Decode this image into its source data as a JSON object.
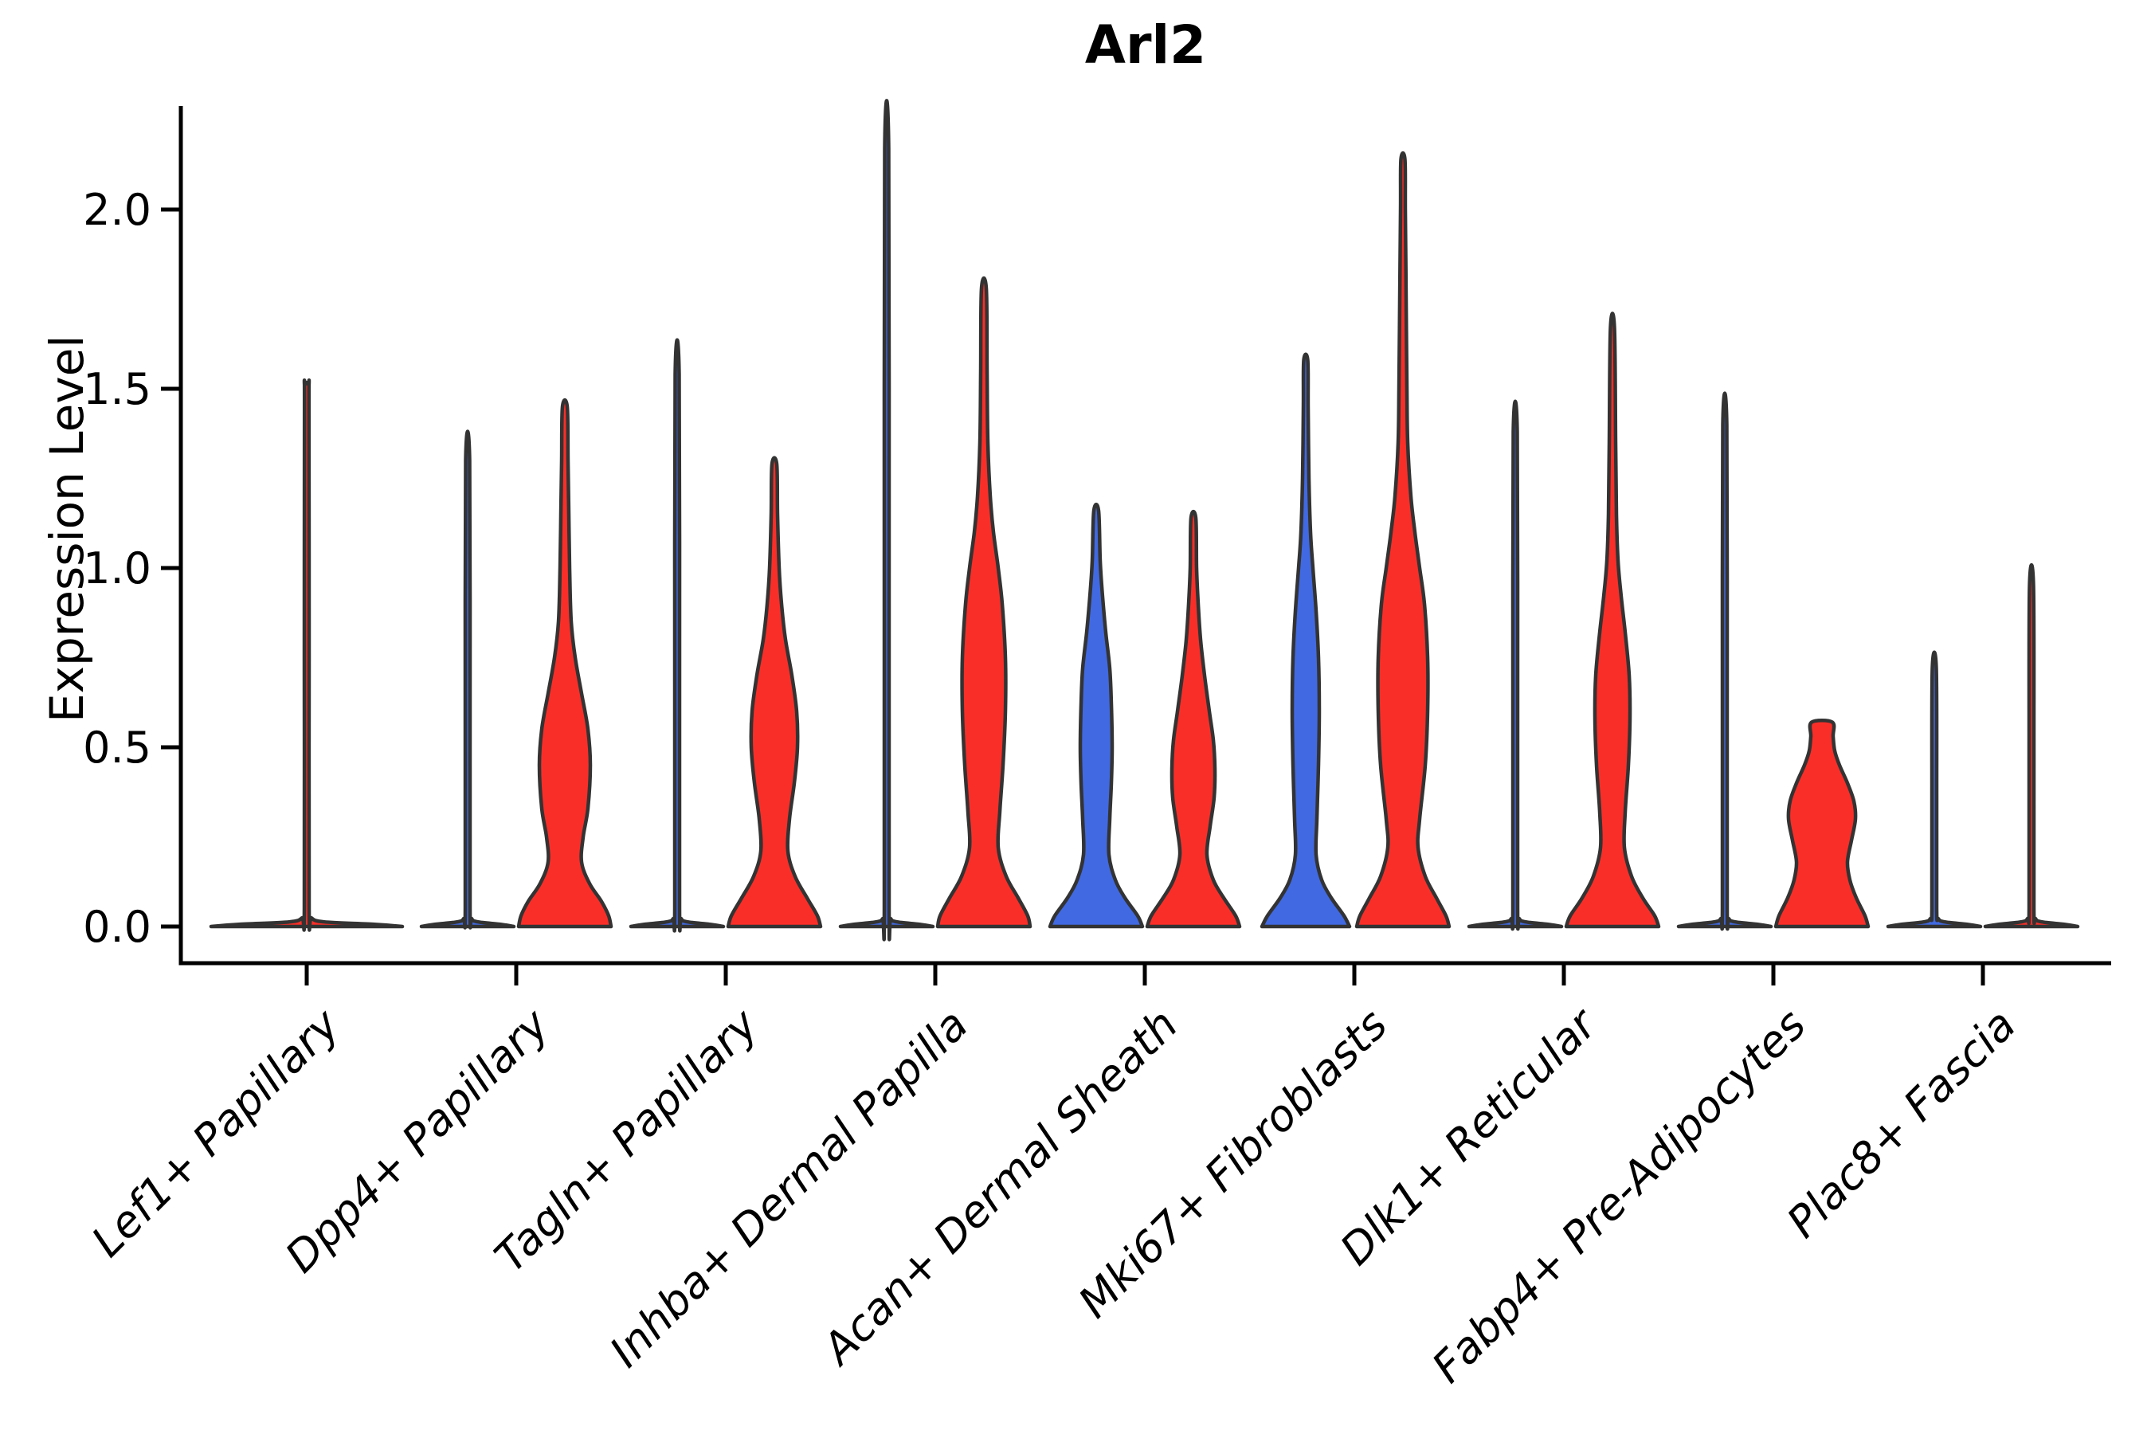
{
  "title": "Arl2",
  "y_axis": {
    "label": "Expression Level",
    "tick_labels": [
      "0.0",
      "0.5",
      "1.0",
      "1.5",
      "2.0"
    ],
    "tick_values": [
      0.0,
      0.5,
      1.0,
      1.5,
      2.0
    ]
  },
  "categories": [
    "Lef1+ Papillary",
    "Dpp4+ Papillary",
    "Tagln+ Papillary",
    "Inhba+ Dermal Papilla",
    "Acan+ Dermal Sheath",
    "Mki67+ Fibroblasts",
    "Dlk1+ Reticular",
    "Fabp4+ Pre-Adipocytes",
    "Plac8+ Fascia"
  ],
  "colors": {
    "red": "#FA2E28",
    "blue": "#4169E1",
    "stroke": "#333333",
    "axis": "#000000"
  },
  "chart_data": {
    "type": "violin",
    "title": "Arl2",
    "xlabel": "",
    "ylabel": "Expression Level",
    "ylim": [
      -0.1,
      2.29
    ],
    "yticks": [
      0.0,
      0.5,
      1.0,
      1.5,
      2.0
    ],
    "grid": false,
    "legend": "none",
    "note": "paired violins per cell type; profile = [expression_value, half_width_px]",
    "groups": [
      {
        "category": "Lef1+ Papillary",
        "violins": [
          {
            "side": "center",
            "color": "red",
            "max_expression": 1.51,
            "profile": [
              [
                0,
                120
              ],
              [
                0.006,
                85
              ],
              [
                0.013,
                22
              ],
              [
                0.024,
                6
              ],
              [
                0.05,
                3
              ],
              [
                0.75,
                3
              ],
              [
                1.45,
                2.8
              ],
              [
                1.51,
                2.5
              ]
            ]
          }
        ]
      },
      {
        "category": "Dpp4+ Papillary",
        "violins": [
          {
            "side": "left",
            "color": "blue",
            "max_expression": 1.3,
            "profile": [
              [
                0,
                58
              ],
              [
                0.006,
                42
              ],
              [
                0.013,
                13
              ],
              [
                0.022,
                5
              ],
              [
                0.05,
                3
              ],
              [
                0.65,
                3
              ],
              [
                1.3,
                2.5
              ]
            ]
          },
          {
            "side": "right",
            "color": "red",
            "max_expression": 1.45,
            "profile": [
              [
                0,
                58
              ],
              [
                0.03,
                55
              ],
              [
                0.07,
                46
              ],
              [
                0.12,
                31
              ],
              [
                0.18,
                21
              ],
              [
                0.25,
                23
              ],
              [
                0.33,
                29
              ],
              [
                0.45,
                32
              ],
              [
                0.55,
                29
              ],
              [
                0.65,
                21
              ],
              [
                0.75,
                13
              ],
              [
                0.85,
                8
              ],
              [
                1.0,
                6
              ],
              [
                1.15,
                5
              ],
              [
                1.3,
                4
              ],
              [
                1.45,
                3
              ]
            ]
          }
        ]
      },
      {
        "category": "Tagln+ Papillary",
        "violins": [
          {
            "side": "left",
            "color": "blue",
            "max_expression": 1.54,
            "profile": [
              [
                0,
                58
              ],
              [
                0.006,
                42
              ],
              [
                0.013,
                13
              ],
              [
                0.022,
                5
              ],
              [
                0.05,
                3
              ],
              [
                0.77,
                3
              ],
              [
                1.54,
                2.5
              ]
            ]
          },
          {
            "side": "right",
            "color": "red",
            "max_expression": 1.29,
            "profile": [
              [
                0,
                58
              ],
              [
                0.03,
                54
              ],
              [
                0.08,
                41
              ],
              [
                0.14,
                26
              ],
              [
                0.21,
                17
              ],
              [
                0.3,
                19
              ],
              [
                0.4,
                25
              ],
              [
                0.5,
                29
              ],
              [
                0.6,
                28
              ],
              [
                0.7,
                22
              ],
              [
                0.8,
                14
              ],
              [
                0.9,
                9
              ],
              [
                1.0,
                6
              ],
              [
                1.15,
                4
              ],
              [
                1.29,
                3
              ]
            ]
          }
        ]
      },
      {
        "category": "Inhba+ Dermal Papilla",
        "violins": [
          {
            "side": "left",
            "color": "blue",
            "max_expression": 2.17,
            "profile": [
              [
                0,
                58
              ],
              [
                0.006,
                42
              ],
              [
                0.013,
                13
              ],
              [
                0.022,
                5
              ],
              [
                0.05,
                3
              ],
              [
                1.1,
                3
              ],
              [
                2.17,
                2.5
              ]
            ]
          },
          {
            "side": "right",
            "color": "red",
            "max_expression": 1.78,
            "profile": [
              [
                0,
                58
              ],
              [
                0.03,
                55
              ],
              [
                0.08,
                43
              ],
              [
                0.14,
                28
              ],
              [
                0.22,
                18
              ],
              [
                0.32,
                20
              ],
              [
                0.45,
                24
              ],
              [
                0.6,
                27
              ],
              [
                0.75,
                27
              ],
              [
                0.9,
                23
              ],
              [
                1.0,
                18
              ],
              [
                1.1,
                12
              ],
              [
                1.2,
                8
              ],
              [
                1.35,
                5
              ],
              [
                1.55,
                4
              ],
              [
                1.78,
                3
              ]
            ]
          }
        ]
      },
      {
        "category": "Acan+ Dermal Sheath",
        "violins": [
          {
            "side": "left",
            "color": "blue",
            "max_expression": 1.16,
            "profile": [
              [
                0,
                58
              ],
              [
                0.03,
                52
              ],
              [
                0.08,
                36
              ],
              [
                0.13,
                24
              ],
              [
                0.2,
                16
              ],
              [
                0.3,
                17
              ],
              [
                0.4,
                19
              ],
              [
                0.5,
                20
              ],
              [
                0.62,
                19
              ],
              [
                0.72,
                17
              ],
              [
                0.82,
                12
              ],
              [
                0.92,
                8
              ],
              [
                1.02,
                5
              ],
              [
                1.16,
                3
              ]
            ]
          },
          {
            "side": "right",
            "color": "red",
            "max_expression": 1.14,
            "profile": [
              [
                0,
                58
              ],
              [
                0.03,
                53
              ],
              [
                0.08,
                38
              ],
              [
                0.13,
                25
              ],
              [
                0.2,
                17
              ],
              [
                0.28,
                21
              ],
              [
                0.36,
                26
              ],
              [
                0.44,
                27
              ],
              [
                0.52,
                25
              ],
              [
                0.6,
                20
              ],
              [
                0.7,
                14
              ],
              [
                0.8,
                9
              ],
              [
                0.9,
                6
              ],
              [
                1.0,
                4
              ],
              [
                1.14,
                3
              ]
            ]
          }
        ]
      },
      {
        "category": "Mki67+ Fibroblasts",
        "violins": [
          {
            "side": "left",
            "color": "blue",
            "max_expression": 1.58,
            "profile": [
              [
                0,
                55
              ],
              [
                0.03,
                48
              ],
              [
                0.08,
                32
              ],
              [
                0.13,
                20
              ],
              [
                0.2,
                13
              ],
              [
                0.3,
                14
              ],
              [
                0.45,
                16
              ],
              [
                0.6,
                17
              ],
              [
                0.75,
                16
              ],
              [
                0.88,
                13
              ],
              [
                1.0,
                9
              ],
              [
                1.1,
                6
              ],
              [
                1.25,
                4
              ],
              [
                1.45,
                3
              ],
              [
                1.58,
                2.5
              ]
            ]
          },
          {
            "side": "right",
            "color": "red",
            "max_expression": 2.14,
            "profile": [
              [
                0,
                58
              ],
              [
                0.03,
                54
              ],
              [
                0.08,
                42
              ],
              [
                0.14,
                28
              ],
              [
                0.22,
                19
              ],
              [
                0.3,
                21
              ],
              [
                0.45,
                28
              ],
              [
                0.6,
                31
              ],
              [
                0.75,
                31
              ],
              [
                0.9,
                27
              ],
              [
                1.0,
                21
              ],
              [
                1.1,
                15
              ],
              [
                1.2,
                10
              ],
              [
                1.35,
                6
              ],
              [
                1.5,
                5
              ],
              [
                1.75,
                4
              ],
              [
                2.0,
                3
              ],
              [
                2.14,
                2.5
              ]
            ]
          }
        ]
      },
      {
        "category": "Dlk1+ Reticular",
        "violins": [
          {
            "side": "left",
            "color": "blue",
            "max_expression": 1.38,
            "profile": [
              [
                0,
                58
              ],
              [
                0.006,
                42
              ],
              [
                0.013,
                13
              ],
              [
                0.022,
                5
              ],
              [
                0.05,
                3
              ],
              [
                0.7,
                3
              ],
              [
                1.38,
                2.5
              ]
            ]
          },
          {
            "side": "right",
            "color": "red",
            "max_expression": 1.67,
            "profile": [
              [
                0,
                58
              ],
              [
                0.03,
                53
              ],
              [
                0.08,
                38
              ],
              [
                0.14,
                24
              ],
              [
                0.22,
                15
              ],
              [
                0.32,
                16
              ],
              [
                0.45,
                20
              ],
              [
                0.58,
                22
              ],
              [
                0.7,
                21
              ],
              [
                0.82,
                16
              ],
              [
                0.92,
                11
              ],
              [
                1.02,
                7
              ],
              [
                1.15,
                5
              ],
              [
                1.35,
                4
              ],
              [
                1.67,
                2.5
              ]
            ]
          }
        ]
      },
      {
        "category": "Fabp4+ Pre-Adipocytes",
        "violins": [
          {
            "side": "left",
            "color": "blue",
            "max_expression": 1.4,
            "profile": [
              [
                0,
                58
              ],
              [
                0.006,
                42
              ],
              [
                0.013,
                13
              ],
              [
                0.022,
                5
              ],
              [
                0.05,
                3
              ],
              [
                0.7,
                3
              ],
              [
                1.4,
                2.5
              ]
            ]
          },
          {
            "side": "right",
            "color": "red",
            "max_expression": 0.57,
            "flat_top": true,
            "profile": [
              [
                0,
                58
              ],
              [
                0.03,
                54
              ],
              [
                0.08,
                43
              ],
              [
                0.13,
                35
              ],
              [
                0.18,
                32
              ],
              [
                0.24,
                37
              ],
              [
                0.3,
                42
              ],
              [
                0.35,
                40
              ],
              [
                0.4,
                32
              ],
              [
                0.45,
                22
              ],
              [
                0.49,
                16
              ],
              [
                0.53,
                14
              ],
              [
                0.57,
                13
              ]
            ]
          }
        ]
      },
      {
        "category": "Plac8+ Fascia",
        "violins": [
          {
            "side": "left",
            "color": "blue",
            "max_expression": 0.72,
            "profile": [
              [
                0,
                58
              ],
              [
                0.006,
                42
              ],
              [
                0.013,
                13
              ],
              [
                0.022,
                5
              ],
              [
                0.05,
                3
              ],
              [
                0.36,
                3
              ],
              [
                0.72,
                2.5
              ]
            ]
          },
          {
            "side": "right",
            "color": "red",
            "max_expression": 0.95,
            "profile": [
              [
                0,
                58
              ],
              [
                0.006,
                42
              ],
              [
                0.013,
                13
              ],
              [
                0.022,
                5
              ],
              [
                0.05,
                3
              ],
              [
                0.48,
                3
              ],
              [
                0.95,
                2.5
              ]
            ]
          }
        ]
      }
    ]
  }
}
